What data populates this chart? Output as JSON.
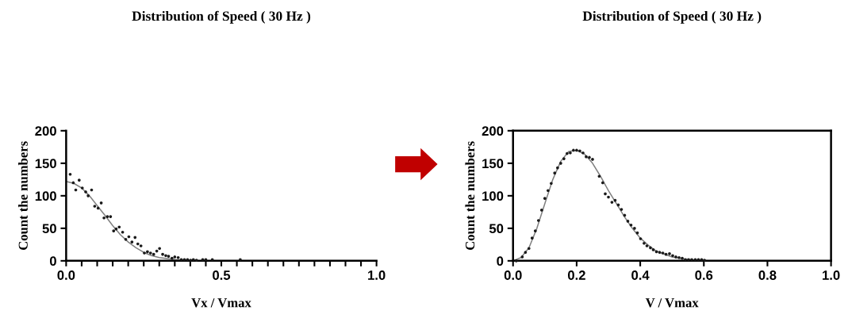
{
  "chart_data": [
    {
      "type": "scatter",
      "title": "Distribution of Speed ( 30 Hz )",
      "xlabel": "Vx / Vmax",
      "ylabel": "Count the numbers",
      "xlim": [
        0,
        1
      ],
      "ylim": [
        0,
        200
      ],
      "xticks": [
        {
          "value": 0,
          "label": "0.0"
        },
        {
          "value": 0.05,
          "label": null
        },
        {
          "value": 0.1,
          "label": null
        },
        {
          "value": 0.15,
          "label": null
        },
        {
          "value": 0.2,
          "label": null
        },
        {
          "value": 0.25,
          "label": null
        },
        {
          "value": 0.3,
          "label": null
        },
        {
          "value": 0.35,
          "label": null
        },
        {
          "value": 0.4,
          "label": null
        },
        {
          "value": 0.45,
          "label": null
        },
        {
          "value": 0.5,
          "label": "0.5"
        },
        {
          "value": 0.55,
          "label": null
        },
        {
          "value": 0.6,
          "label": null
        },
        {
          "value": 0.65,
          "label": null
        },
        {
          "value": 0.7,
          "label": null
        },
        {
          "value": 0.75,
          "label": null
        },
        {
          "value": 0.8,
          "label": null
        },
        {
          "value": 0.85,
          "label": null
        },
        {
          "value": 0.9,
          "label": null
        },
        {
          "value": 0.95,
          "label": null
        },
        {
          "value": 1,
          "label": "1.0"
        }
      ],
      "yticks": [
        0,
        50,
        100,
        150,
        200
      ],
      "grid": false,
      "legend": false,
      "series": [
        {
          "marker": "circle",
          "color": "#1a1a1a",
          "x": [
            0.013,
            0.023,
            0.031,
            0.042,
            0.052,
            0.063,
            0.071,
            0.082,
            0.092,
            0.103,
            0.113,
            0.122,
            0.133,
            0.143,
            0.153,
            0.161,
            0.171,
            0.182,
            0.192,
            0.202,
            0.212,
            0.222,
            0.231,
            0.241,
            0.252,
            0.262,
            0.272,
            0.282,
            0.292,
            0.301,
            0.311,
            0.321,
            0.33,
            0.341,
            0.35,
            0.361,
            0.371,
            0.381,
            0.391,
            0.401,
            0.41,
            0.42,
            0.44,
            0.45,
            0.471,
            0.561
          ],
          "values": [
            133,
            120,
            109,
            124,
            112,
            106,
            100,
            109,
            84,
            81,
            89,
            66,
            68,
            68,
            46,
            49,
            52,
            44,
            33,
            37,
            29,
            36,
            26,
            23,
            12,
            14,
            12,
            10,
            15,
            19,
            10,
            8,
            7,
            4,
            6,
            5,
            2,
            2,
            2,
            1,
            2,
            1,
            2,
            2,
            2,
            2
          ]
        },
        {
          "type": "line",
          "marker": "none",
          "color": "#808080",
          "line_style": "solid",
          "x": [
            0,
            0.025,
            0.05,
            0.075,
            0.1,
            0.125,
            0.15,
            0.175,
            0.2,
            0.225,
            0.25,
            0.275,
            0.3,
            0.35,
            0.4,
            0.5
          ],
          "values": [
            122,
            119,
            112,
            100,
            85,
            70,
            54,
            40,
            29,
            20,
            13,
            8,
            5,
            2,
            0,
            0
          ]
        }
      ]
    },
    {
      "type": "scatter",
      "title": "Distribution of Speed ( 30 Hz )",
      "xlabel": "V / Vmax",
      "ylabel": "Count the numbers",
      "xlim": [
        0,
        1
      ],
      "ylim": [
        0,
        200
      ],
      "xticks": [
        {
          "value": 0,
          "label": "0.0"
        },
        {
          "value": 0.2,
          "label": "0.2"
        },
        {
          "value": 0.4,
          "label": "0.4"
        },
        {
          "value": 0.6,
          "label": "0.6"
        },
        {
          "value": 0.8,
          "label": "0.8"
        },
        {
          "value": 1,
          "label": "1.0"
        }
      ],
      "yticks": [
        0,
        50,
        100,
        150,
        200
      ],
      "grid": false,
      "legend": false,
      "series": [
        {
          "marker": "circle",
          "color": "#1a1a1a",
          "x": [
            0.01,
            0.029,
            0.039,
            0.05,
            0.06,
            0.07,
            0.08,
            0.09,
            0.1,
            0.11,
            0.12,
            0.131,
            0.14,
            0.15,
            0.16,
            0.17,
            0.18,
            0.19,
            0.2,
            0.21,
            0.22,
            0.23,
            0.24,
            0.25,
            0.271,
            0.282,
            0.29,
            0.3,
            0.311,
            0.321,
            0.331,
            0.341,
            0.351,
            0.361,
            0.371,
            0.382,
            0.391,
            0.401,
            0.412,
            0.421,
            0.432,
            0.441,
            0.451,
            0.461,
            0.471,
            0.481,
            0.492,
            0.502,
            0.512,
            0.522,
            0.532,
            0.542,
            0.552,
            0.562,
            0.573,
            0.583,
            0.593,
            0.602
          ],
          "values": [
            0,
            6,
            13,
            19,
            35,
            46,
            62,
            78,
            96,
            108,
            119,
            135,
            143,
            150,
            157,
            165,
            166,
            170,
            170,
            169,
            166,
            160,
            159,
            156,
            130,
            120,
            103,
            98,
            90,
            93,
            86,
            79,
            70,
            61,
            55,
            50,
            43,
            34,
            27,
            23,
            20,
            17,
            14,
            13,
            12,
            10,
            11,
            8,
            6,
            5,
            4,
            2,
            2,
            2,
            2,
            2,
            2,
            1
          ]
        },
        {
          "type": "line",
          "marker": "none",
          "color": "#808080",
          "line_style": "solid",
          "x": [
            0,
            0.025,
            0.05,
            0.075,
            0.1,
            0.125,
            0.15,
            0.175,
            0.2,
            0.225,
            0.25,
            0.275,
            0.3,
            0.325,
            0.35,
            0.375,
            0.4,
            0.425,
            0.45,
            0.5,
            0.55,
            0.6,
            0.7,
            1
          ],
          "values": [
            0,
            5,
            20,
            50,
            88,
            125,
            153,
            168,
            170,
            164,
            150,
            130,
            108,
            88,
            68,
            50,
            35,
            24,
            15,
            6,
            2,
            0,
            0,
            0
          ]
        }
      ]
    }
  ]
}
